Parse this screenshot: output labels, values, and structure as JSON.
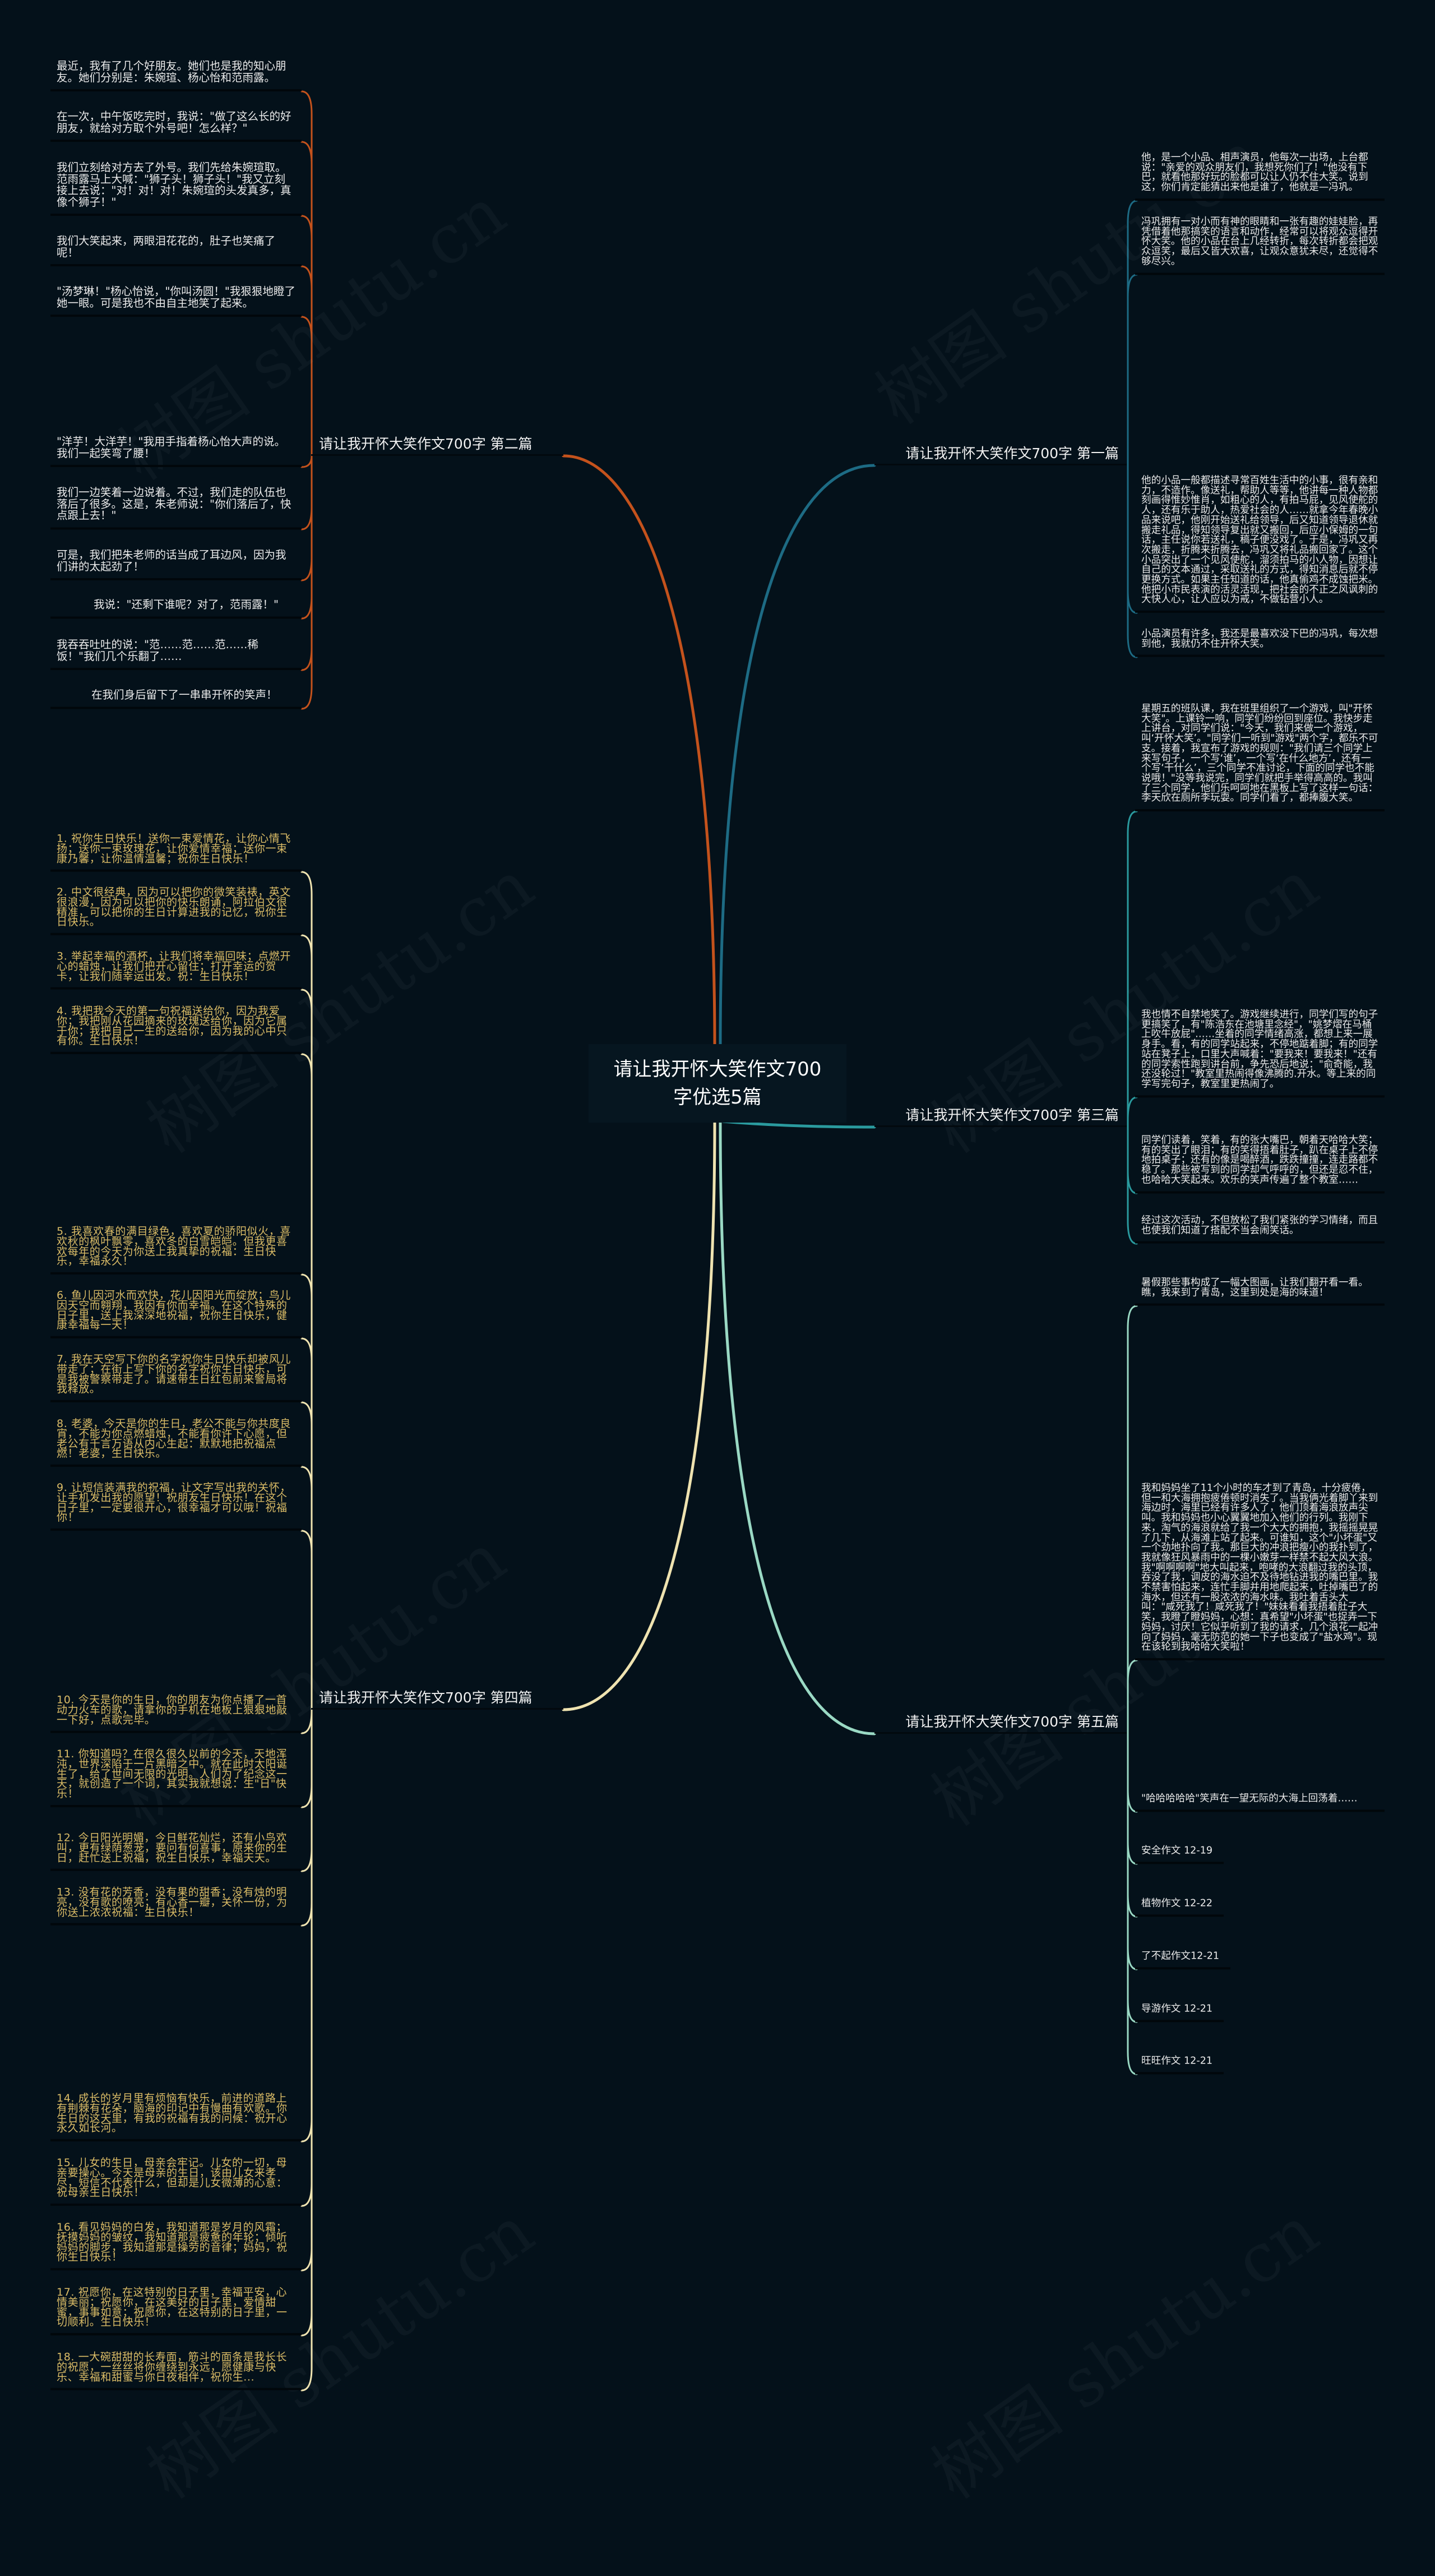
{
  "watermark": "树图 shutu.cn",
  "colors": {
    "background": "#04111a",
    "branch_1": "#1d6b84",
    "branch_2": "#c4521c",
    "branch_3": "#2a9a9e",
    "branch_4": "#efe3b0",
    "branch_5": "#9ad9c4",
    "branch_4_text": "#dcbd67"
  },
  "center": {
    "title": "请让我开怀大笑作文700字优选5篇"
  },
  "branches": [
    {
      "label": "请让我开怀大笑作文700字 第一篇",
      "items": [
        "他，是一个小品、相声演员，他每次一出场，上台都说：\"亲爱的观众朋友们，我想死你们了！\"他没有下巴，就看他那好玩的脸都可以让人仍不住大笑。说到这，你们肯定能猜出来他是谁了，他就是—冯巩。",
        "冯巩拥有一对小而有神的眼睛和一张有趣的娃娃脸，再凭借着他那搞笑的语言和动作，经常可以将观众逗得开怀大笑。他的小品在台上几经转折，每次转折都会把观众逗笑，最后又皆大欢喜，让观众意犹未尽，还觉得不够尽兴。",
        "他的小品一般都描述寻常百姓生活中的小事，很有亲和力，不造作。像送礼，帮助人等等，他讲每一种人物都刻画得惟妙惟肖，如粗心的人，有拍马屁，见风使舵的人，还有乐于助人，热爱社会的人……就拿今年春晚小品来说吧，他刚开始送礼给领导，后又知道领导退休就搬走礼品，得知领导复出就又搬回，后应小保姆的一句话，主任说你若送礼，稿子便没戏了。于是，冯巩又再次搬走，折腾来折腾去，冯巩又将礼品搬回家了。这个小品突出了一个见风使舵，溜须拍马的小人物，因想让自己的文本通过，采取送礼的方式，得知消息后就不停更换方式。如果主任知道的话，他真偷鸡不成蚀把米。他把小市民表演的活灵活现，把社会的不正之风讽刺的大快人心，让人应以为戒，不做钻营小人。",
        "小品演员有许多，我还是最喜欢没下巴的冯巩，每次想到他，我就仍不住开怀大笑。"
      ]
    },
    {
      "label": "请让我开怀大笑作文700字 第二篇",
      "items": [
        "最近，我有了几个好朋友。她们也是我的知心朋友。她们分别是：朱婉瑄、杨心怡和范雨露。",
        "在一次，中午饭吃完时，我说：\"做了这么长的好朋友，就给对方取个外号吧！怎么样？\"",
        "我们立刻给对方去了外号。我们先给朱婉瑄取。范雨露马上大喊：\"狮子头！狮子头！\"我又立刻接上去说：\"对！对！对！朱婉瑄的头发真多，真像个狮子！\"",
        "我们大笑起来，两眼泪花花的，肚子也笑痛了呢！",
        "\"汤梦琳！\"杨心怡说，\"你叫汤圆！\"我狠狠地瞪了她一眼。可是我也不由自主地笑了起来。",
        "\"洋芋！大洋芋！\"我用手指着杨心怡大声的说。我们一起笑弯了腰！",
        "我们一边笑着一边说着。不过，我们走的队伍也落后了很多。这是，朱老师说：\"你们落后了，快点跟上去！\"",
        "可是，我们把朱老师的话当成了耳边风，因为我们讲的太起劲了！",
        "我说：\"还剩下谁呢？对了，范雨露！\"",
        "我吞吞吐吐的说：\"范……范……范……稀饭！\"我们几个乐翻了……",
        "在我们身后留下了一串串开怀的笑声！"
      ]
    },
    {
      "label": "请让我开怀大笑作文700字 第三篇",
      "items": [
        "星期五的班队课，我在班里组织了一个游戏，叫\"开怀大笑\"。上课铃一响，同学们纷纷回到座位。我快步走上讲台，对同学们说：\"今天，我们来做一个游戏，叫‘开怀大笑’。\"同学们一听到\"游戏\"两个字，都乐不可支。接着，我宣布了游戏的规则：\"我们请三个同学上来写句子，一个写‘谁’，一个写‘在什么地方’，还有一个写‘干什么’，三个同学不准讨论，下面的同学也不能说哦！\"没等我说完，同学们就把手举得高高的。我叫了三个同学，他们乐呵呵地在黑板上写了这样一句话：李天欣在厕所李玩耍。同学们看了，都捧腹大笑。",
        "我也情不自禁地笑了。游戏继续进行，同学们写的句子更搞笑了，有\"陈浩东在池塘里念经\"，\"姚梦熠在马桶上吹牛放屁\"……坐着的同学情绪高涨，都想上来一展身手。看，有的同学站起来，不停地踮着脚；有的同学站在凳子上，口里大声喊着：\"要我来！要我来！\"还有的同学索性跑到讲台前，争先恐后地说：\"俞奇能，我还没轮过！\"教室里热闹得像沸腾的.开水。等上来的同学写完句子，教室里更热闹了。",
        "同学们读着，笑着，有的张大嘴巴，朝着天哈哈大笑；有的笑出了眼泪；有的笑得捂着肚子，趴在桌子上不停地拍桌子；还有的像是喝醉酒，跌跌撞撞，连走路都不稳了。那些被写到的同学却气呼呼的，但还是忍不住，也哈哈大笑起来。欢乐的笑声传遍了整个教室……",
        "经过这次活动，不但放松了我们紧张的学习情绪，而且也使我们知道了搭配不当会闹笑话。"
      ]
    },
    {
      "label": "请让我开怀大笑作文700字 第四篇",
      "items": [
        "1. 祝你生日快乐！送你一束爱情花，让你心情飞扬；送你一束玫瑰花，让你爱情幸福；送你一束康乃馨，让你温情温馨；祝你生日快乐！",
        "2. 中文很经典，因为可以把你的微笑装裱，英文很浪漫，因为可以把你的快乐朗诵，阿拉伯文很精准，可以把你的生日计算进我的记忆，祝你生日快乐。",
        "3. 举起幸福的酒杯，让我们将幸福回味；点燃开心的蜡烛，让我们把开心留住；打开幸运的贺卡，让我们随幸运出发。祝：生日快乐！",
        "4. 我把我今天的第一句祝福送给你，因为我爱你；我把刚从花园摘来的玫瑰送给你，因为它属于你；我把自己一生的送给你，因为我的心中只有你。生日快乐！",
        "5. 我喜欢春的满目绿色，喜欢夏的骄阳似火，喜欢秋的枫叶飘零，喜欢冬的白雪皑皑。但我更喜欢每年的今天为你送上我真挚的祝福：生日快乐，幸福永久！",
        "6. 鱼儿因河水而欢快，花儿因阳光而绽放；鸟儿因天空而翱翔，我因有你而幸福。在这个特殊的日子里，送上我深深地祝福，祝你生日快乐，健康幸福每一天！",
        "7. 我在天空写下你的名字祝你生日快乐却被风儿带走了；在街上写下你的名字祝你生日快乐，可是我被警察带走了。请速带生日红包前来警局将我释放。",
        "8. 老婆，今天是你的生日，老公不能与你共度良宵，不能为你点燃蜡烛，不能看你许下心愿，但老公有千言万语从内心生起：默默地把祝福点燃！老婆，生日快乐。",
        "9. 让短信装满我的祝福，让文字写出我的关怀，让手机发出我的愿望！祝朋友生日快乐！在这个日子里，一定要很开心，很幸福才可以哦！祝福你！",
        "10. 今天是你的生日，你的朋友为你点播了一首动力火车的歌，请拿你的手机在地板上狠狠地敲一下好，点歌完毕。",
        "11. 你知道吗？在很久很久以前的今天，天地浑沌，世界深陷于一片黑暗之中。就在此时太阳诞生了，给了世间无限的光明。人们为了纪念这一天，就创造了一个词，其实我就想说：生\"日\"快乐！",
        "12. 今日阳光明媚，今日鲜花灿烂，还有小鸟欢叫，更有绿荫葱茏，要问有何喜事，原来你的生日，赶忙送上祝福，祝生日快乐，幸福天天。",
        "13. 没有花的芳香，没有果的甜香；没有烛的明亮，没有歌的嘹亮；有心香一瓣，关怀一份，为你送上浓浓祝福：生日快乐！",
        "14. 成长的岁月里有烦恼有快乐，前进的道路上有荆棘有花朵，脑海的印记中有慢曲有欢歌。你生日的这天里，有我的祝福有我的问候：祝开心永久如长河。",
        "15. 儿女的生日，母亲会牢记。儿女的一切，母亲要操心。今天是母亲的生日，该由儿女来孝尽，短信不代表什么，但却是儿女微薄的心意：祝母亲生日快乐！",
        "16. 看见妈妈的白发，我知道那是岁月的风霜；抚摸妈妈的皱纹，我知道那是疲惫的年轮；倾听妈妈的脚步，我知道那是操劳的音律；妈妈，祝你生日快乐！",
        "17. 祝愿你，在这特别的日子里，幸福平安，心情美丽；祝愿你，在这美好的日子里，爱情甜蜜，事事如意；祝愿你，在这特别的日子里，一切顺利。生日快乐！",
        "18. 一大碗甜甜的长寿面，筋斗的面条是我长长的祝愿，一丝丝将你缠绕到永远，愿健康与快乐、幸福和甜蜜与你日夜相伴，祝你生..."
      ]
    },
    {
      "label": "请让我开怀大笑作文700字 第五篇",
      "items": [
        "暑假那些事构成了一幅大图画，让我们翻开看一看。瞧，我来到了青岛，这里到处是海的味道！",
        "我和妈妈坐了11个小时的车才到了青岛，十分疲倦，但一和大海拥抱疲倦顿时消失了。当我俩光着脚丫来到海边时，海里已经有许多人了，他们顶着海浪放声尖叫。我和妈妈也小心翼翼地加入他们的行列。我刚下来，淘气的海浪就给了我一个大大的拥抱，我摇摇晃晃了几下，从海滩上站了起来。可谁知，这个\"小坏蛋\"又一个劲地扑向了我。那巨大的冲浪把瘦小的我扑到了，我就像狂风暴雨中的一棵小嫩芽一样禁不起大风大浪。我\"啊啊啊啊\"地大叫起来，咆哮的大浪翻过我的头顶，吞没了我，调皮的海水迫不及待地钻进我的嘴巴里。我不禁害怕起来，连忙手脚并用地爬起来，吐掉嘴巴了的海水，但还有一股浓浓的海水味。我吐着舌头大叫：\"咸死我了！咸死我了！\"妹妹看着我捂着肚子大笑，我瞪了瞪妈妈，心想：真希望\"小坏蛋\"也捉弄一下妈妈，讨厌！它似乎听到了我的请求，几个浪花一起冲向了妈妈，毫无防范的她一下子也变成了\"盐水鸡\"。现在该轮到我哈哈大笑啦！",
        "\"哈哈哈哈哈\"笑声在一望无际的大海上回荡着……",
        "安全作文 12-19",
        "植物作文 12-22",
        "了不起作文12-21",
        "导游作文 12-21",
        "旺旺作文 12-21"
      ]
    }
  ]
}
